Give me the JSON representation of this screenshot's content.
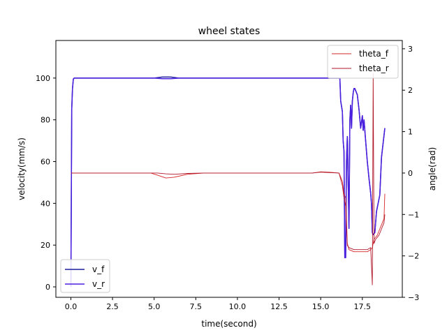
{
  "chart_data": {
    "type": "line",
    "title": "wheel states",
    "xlabel": "time(second)",
    "ylabel_left": "velocity(mm/s)",
    "ylabel_right": "angle(rad)",
    "xlim": [
      -0.9,
      19.9
    ],
    "ylim_left": [
      -5,
      118
    ],
    "ylim_right": [
      -3,
      3.2
    ],
    "xticks": [
      "0.0",
      "2.5",
      "5.0",
      "7.5",
      "10.0",
      "12.5",
      "15.0",
      "17.5"
    ],
    "xtick_values": [
      0,
      2.5,
      5,
      7.5,
      10,
      12.5,
      15,
      17.5
    ],
    "yticks_left": [
      "0",
      "20",
      "40",
      "60",
      "80",
      "100"
    ],
    "ytick_values_left": [
      0,
      20,
      40,
      60,
      80,
      100
    ],
    "yticks_right": [
      "−3",
      "−2",
      "−1",
      "0",
      "1",
      "2",
      "3"
    ],
    "ytick_values_right": [
      -3,
      -2,
      -1,
      0,
      1,
      2,
      3
    ],
    "grid": false,
    "legend_left": {
      "placement": "lower-left",
      "entries": [
        "v_f",
        "v_r"
      ]
    },
    "legend_right": {
      "placement": "upper-right",
      "entries": [
        "theta_f",
        "theta_r"
      ]
    },
    "series": [
      {
        "name": "v_f",
        "axis": "left",
        "color": "#1f1f9f",
        "x": [
          0,
          0.05,
          0.1,
          0.15,
          0.2,
          2,
          4,
          5,
          5.5,
          6,
          6.5,
          10,
          15,
          16.15,
          16.2,
          16.3,
          16.35,
          16.4,
          16.45,
          16.5,
          16.55,
          16.6,
          16.65,
          16.7,
          16.75,
          16.8,
          16.85,
          16.9,
          16.95,
          17.0,
          17.05,
          17.1,
          17.2,
          17.3,
          17.4,
          17.5,
          17.55,
          17.6,
          17.7,
          17.75,
          17.8,
          17.9,
          18.0,
          18.05,
          18.1,
          18.15,
          18.25,
          18.35,
          18.45,
          18.55,
          18.65,
          18.75,
          18.85
        ],
        "y": [
          0,
          85,
          95,
          99.5,
          100,
          100,
          100,
          100,
          100.5,
          100.5,
          100,
          100,
          100,
          100,
          89,
          84,
          70,
          65,
          14,
          14,
          60,
          72,
          50,
          28,
          80,
          87,
          76,
          89,
          93,
          95,
          95,
          94,
          92,
          85,
          76,
          82,
          75,
          80,
          70,
          65,
          60,
          52,
          45,
          40,
          26,
          25,
          26,
          36,
          40,
          44,
          62,
          69,
          76
        ]
      },
      {
        "name": "v_r",
        "axis": "left",
        "color": "#4b1fe0",
        "x": [
          0,
          0.05,
          0.1,
          0.15,
          0.2,
          2,
          4,
          5,
          5.5,
          6,
          6.5,
          10,
          15,
          16.15,
          16.2,
          16.3,
          16.35,
          16.4,
          16.45,
          16.5,
          16.55,
          16.6,
          16.65,
          16.7,
          16.75,
          16.8,
          16.85,
          16.9,
          16.95,
          17.0,
          17.05,
          17.1,
          17.2,
          17.3,
          17.4,
          17.5,
          17.55,
          17.6,
          17.7,
          17.75,
          17.8,
          17.9,
          18.0,
          18.05,
          18.1,
          18.15,
          18.25,
          18.35,
          18.45,
          18.55,
          18.65,
          18.75,
          18.85
        ],
        "y": [
          0,
          85,
          95,
          99.5,
          100,
          100,
          100,
          100,
          99.7,
          99.7,
          100,
          100,
          100,
          100,
          89,
          84,
          70,
          65,
          14,
          14,
          60,
          72,
          50,
          28,
          80,
          87,
          76,
          89,
          93,
          95,
          95,
          94,
          92,
          85,
          76,
          82,
          75,
          80,
          70,
          65,
          60,
          52,
          45,
          40,
          26,
          25,
          26,
          36,
          40,
          44,
          62,
          69,
          76
        ]
      },
      {
        "name": "theta_f",
        "axis": "right",
        "color": "#d62728",
        "x": [
          0,
          4.8,
          5.2,
          5.7,
          6.2,
          7,
          8,
          10,
          13,
          14.5,
          15,
          15.5,
          16.1,
          16.3,
          16.4,
          16.5,
          16.6,
          16.7,
          17.0,
          17.5,
          17.8,
          18.0,
          18.1,
          18.2,
          18.4,
          18.5,
          18.6,
          18.7,
          18.8,
          18.85
        ],
        "y": [
          0,
          0,
          -0.05,
          -0.12,
          -0.1,
          -0.03,
          0,
          0,
          0,
          0,
          0.03,
          0.02,
          0,
          -0.2,
          -0.5,
          -0.6,
          -1.7,
          -1.85,
          -1.9,
          -1.9,
          -1.9,
          -1.85,
          -1.8,
          -1.6,
          -1.5,
          -1.4,
          -1.3,
          -1.2,
          -1.1,
          -0.5
        ]
      },
      {
        "name": "theta_r",
        "axis": "right",
        "color": "#b0172a",
        "x": [
          0,
          4.8,
          5.2,
          5.7,
          6.2,
          7,
          8,
          10,
          13,
          14.5,
          15,
          15.5,
          16.1,
          16.3,
          16.4,
          16.5,
          16.6,
          16.7,
          17.0,
          17.5,
          17.8,
          18.0,
          18.1,
          18.15,
          18.2,
          18.3,
          18.5,
          18.6,
          18.7,
          18.8,
          18.85
        ],
        "y": [
          0,
          0,
          0,
          -0.02,
          -0.03,
          -0.01,
          0,
          0,
          0,
          0,
          0.02,
          0.01,
          0,
          -0.3,
          -0.6,
          -0.8,
          -1.75,
          -1.8,
          -1.85,
          -1.85,
          -1.85,
          -1.8,
          -2.7,
          2.4,
          -1.7,
          -1.6,
          -1.5,
          -1.4,
          -1.3,
          -1.2,
          -1.0
        ]
      }
    ]
  }
}
